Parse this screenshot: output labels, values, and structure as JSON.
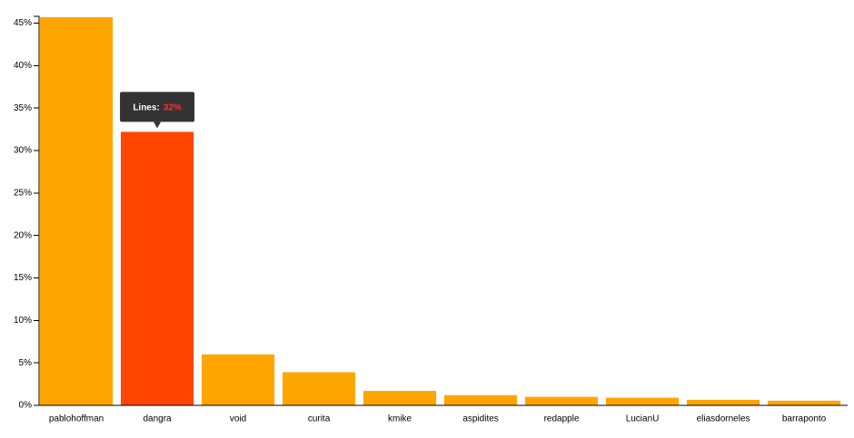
{
  "chart_data": {
    "type": "bar",
    "categories": [
      "pablohoffman",
      "dangra",
      "void",
      "curita",
      "kmike",
      "aspidites",
      "redapple",
      "LucianU",
      "eliasdorneles",
      "barraponto"
    ],
    "values": [
      45.7,
      32.2,
      6.0,
      3.9,
      1.7,
      1.2,
      1.0,
      0.9,
      0.65,
      0.55
    ],
    "colors": [
      "#ffa500",
      "#ff4500",
      "#ffa500",
      "#ffa500",
      "#ffa500",
      "#ffa500",
      "#ffa500",
      "#ffa500",
      "#ffa500",
      "#ffa500"
    ],
    "ylim": [
      0,
      45.8
    ],
    "yticks": [
      {
        "value": 0,
        "label": "0%"
      },
      {
        "value": 5,
        "label": "5%"
      },
      {
        "value": 10,
        "label": "10%"
      },
      {
        "value": 15,
        "label": "15%"
      },
      {
        "value": 20,
        "label": "20%"
      },
      {
        "value": 25,
        "label": "25%"
      },
      {
        "value": 30,
        "label": "30%"
      },
      {
        "value": 35,
        "label": "35%"
      },
      {
        "value": 40,
        "label": "40%"
      },
      {
        "value": 45,
        "label": "45%"
      }
    ],
    "tooltip": {
      "label": "Lines:",
      "value": "32%"
    }
  }
}
